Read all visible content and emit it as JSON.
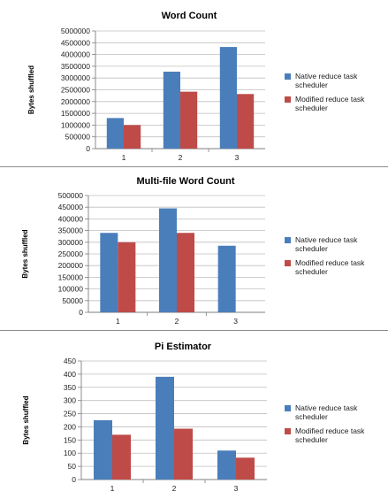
{
  "colors": {
    "native": "#4a7ebb",
    "modified": "#be4b48",
    "grid": "#bfbfbf",
    "axis": "#7f7f7f"
  },
  "chart_data": [
    {
      "type": "bar",
      "title": "Word Count",
      "ylabel": "Bytes shuffled",
      "xlabel": "",
      "categories": [
        "1",
        "2",
        "3"
      ],
      "ylim": [
        0,
        5000000
      ],
      "ytick_step": 500000,
      "yticks": [
        "0",
        "500000",
        "1000000",
        "1500000",
        "2000000",
        "2500000",
        "3000000",
        "3500000",
        "4000000",
        "4500000",
        "5000000"
      ],
      "legend_position": "right",
      "grid": true,
      "series": [
        {
          "name": "Native reduce task scheduler",
          "legend_lines": [
            "Native reduce task",
            "scheduler"
          ],
          "color_key": "native",
          "values": [
            1300000,
            3270000,
            4320000
          ]
        },
        {
          "name": "Modified reduce task scheduler",
          "legend_lines": [
            "Modified reduce task",
            "scheduler"
          ],
          "color_key": "modified",
          "values": [
            1000000,
            2420000,
            2320000
          ]
        }
      ]
    },
    {
      "type": "bar",
      "title": "Multi-file Word Count",
      "ylabel": "Bytes shuffled",
      "xlabel": "",
      "categories": [
        "1",
        "2",
        "3"
      ],
      "ylim": [
        0,
        500000
      ],
      "ytick_step": 50000,
      "yticks": [
        "0",
        "50000",
        "100000",
        "150000",
        "200000",
        "250000",
        "300000",
        "350000",
        "400000",
        "450000",
        "500000"
      ],
      "legend_position": "right",
      "grid": true,
      "series": [
        {
          "name": "Native reduce task scheduler",
          "legend_lines": [
            "Native reduce task",
            "scheduler"
          ],
          "color_key": "native",
          "values": [
            340000,
            445000,
            285000
          ]
        },
        {
          "name": "Modified reduce task scheduler",
          "legend_lines": [
            "Modified reduce task",
            "scheduler"
          ],
          "color_key": "modified",
          "values": [
            300000,
            340000,
            0
          ]
        }
      ]
    },
    {
      "type": "bar",
      "title": "Pi Estimator",
      "ylabel": "Bytes shuffled",
      "xlabel": "",
      "categories": [
        "1",
        "2",
        "3"
      ],
      "ylim": [
        0,
        450
      ],
      "ytick_step": 50,
      "yticks": [
        "0",
        "50",
        "100",
        "150",
        "200",
        "250",
        "300",
        "350",
        "400",
        "450"
      ],
      "legend_position": "right",
      "grid": true,
      "series": [
        {
          "name": "Native reduce task scheduler",
          "legend_lines": [
            "Native reduce task",
            "scheduler"
          ],
          "color_key": "native",
          "values": [
            225,
            390,
            110
          ]
        },
        {
          "name": "Modified reduce task scheduler",
          "legend_lines": [
            "Modified reduce task",
            "scheduler"
          ],
          "color_key": "modified",
          "values": [
            170,
            193,
            83
          ]
        }
      ]
    }
  ]
}
